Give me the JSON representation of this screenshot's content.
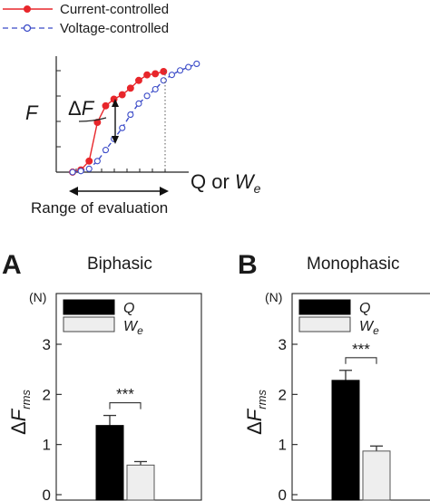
{
  "schematic": {
    "legend": [
      {
        "label": "Current-controlled",
        "color": "#e8262b",
        "dash": "solid",
        "marker": "filled-circle"
      },
      {
        "label": "Voltage-controlled",
        "color": "#3b4bc8",
        "dash": "dashed",
        "marker": "open-circle"
      }
    ],
    "ylabel": "F",
    "xlabel_prefix": "Q or ",
    "xlabel_var": "W",
    "xlabel_sub": "e",
    "delta_label_sym": "Δ",
    "delta_label_var": "F",
    "range_label": "Range of evaluation"
  },
  "chart_data": [
    {
      "type": "line",
      "panel": "schematic",
      "note": "qualitative illustration, no numeric axes printed",
      "series": [
        {
          "name": "Current-controlled",
          "x": [
            0.0,
            0.06,
            0.12,
            0.18,
            0.24,
            0.3,
            0.36,
            0.42,
            0.48,
            0.54,
            0.6,
            0.66
          ],
          "y": [
            0.0,
            0.02,
            0.1,
            0.45,
            0.6,
            0.66,
            0.7,
            0.76,
            0.83,
            0.88,
            0.89,
            0.91
          ]
        },
        {
          "name": "Voltage-controlled",
          "x": [
            0.0,
            0.06,
            0.12,
            0.18,
            0.24,
            0.3,
            0.36,
            0.42,
            0.48,
            0.54,
            0.6,
            0.66,
            0.72,
            0.78,
            0.84,
            0.9
          ],
          "y": [
            0.0,
            0.01,
            0.03,
            0.1,
            0.2,
            0.3,
            0.4,
            0.52,
            0.62,
            0.69,
            0.75,
            0.83,
            0.88,
            0.92,
            0.95,
            0.98
          ]
        }
      ]
    },
    {
      "type": "bar",
      "panel_letter": "A",
      "title": "Biphasic",
      "ylabel_sym": "ΔF",
      "ylabel_sub": "rms",
      "unit": "(N)",
      "ylim": [
        0,
        3.5
      ],
      "yticks": [
        "0",
        "1",
        "2",
        "3"
      ],
      "significance": "***",
      "categories": [
        "Q",
        "We"
      ],
      "legend": [
        {
          "var": "Q",
          "sub": ""
        },
        {
          "var": "W",
          "sub": "e"
        }
      ],
      "values": [
        1.38,
        0.59
      ],
      "errors": [
        0.2,
        0.07
      ],
      "colors": [
        "#000000",
        "#eeeeee"
      ]
    },
    {
      "type": "bar",
      "panel_letter": "B",
      "title": "Monophasic",
      "ylabel_sym": "ΔF",
      "ylabel_sub": "rms",
      "unit": "(N)",
      "ylim": [
        0,
        3.5
      ],
      "yticks": [
        "0",
        "1",
        "2",
        "3"
      ],
      "significance": "***",
      "categories": [
        "Q",
        "We"
      ],
      "legend": [
        {
          "var": "Q",
          "sub": ""
        },
        {
          "var": "W",
          "sub": "e"
        }
      ],
      "values": [
        2.28,
        0.87
      ],
      "errors": [
        0.2,
        0.1
      ],
      "colors": [
        "#000000",
        "#eeeeee"
      ]
    }
  ]
}
